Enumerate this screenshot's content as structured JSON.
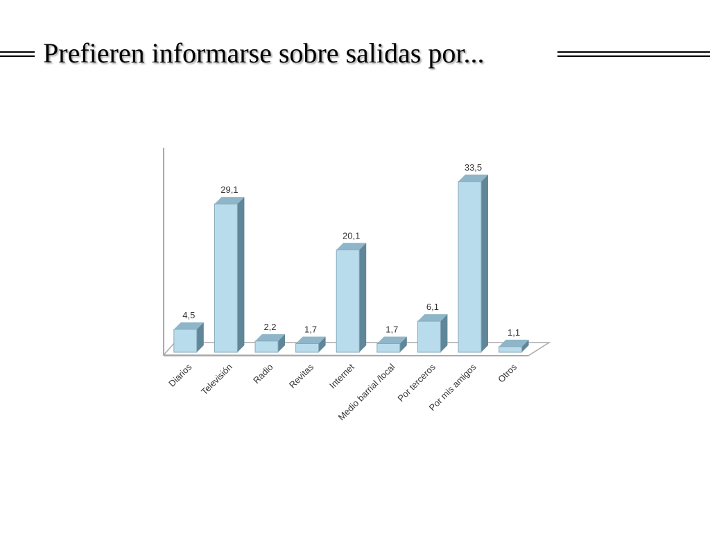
{
  "title": "Prefieren informarse sobre salidas por...",
  "colors": {
    "bar_front": "#b9dcec",
    "bar_side": "#5f8799",
    "bar_top": "#8fb6c8",
    "bar_edge": "#86a9ba",
    "axis": "#a9a9a9"
  },
  "chart_data": {
    "type": "bar",
    "categories": [
      "Diarios",
      "Televisión",
      "Radio",
      "Revitas",
      "Internet",
      "Medio barrial /local",
      "Por terceros",
      "Por mis amigos",
      "Otros"
    ],
    "values": [
      4.5,
      29.1,
      2.2,
      1.7,
      20.1,
      1.7,
      6.1,
      33.5,
      1.1
    ],
    "value_labels": [
      "4,5",
      "29,1",
      "2,2",
      "1,7",
      "20,1",
      "1,7",
      "6,1",
      "33,5",
      "1,1"
    ],
    "ylim": [
      0,
      36
    ],
    "grid": false,
    "legend": "none",
    "three_d": true
  }
}
